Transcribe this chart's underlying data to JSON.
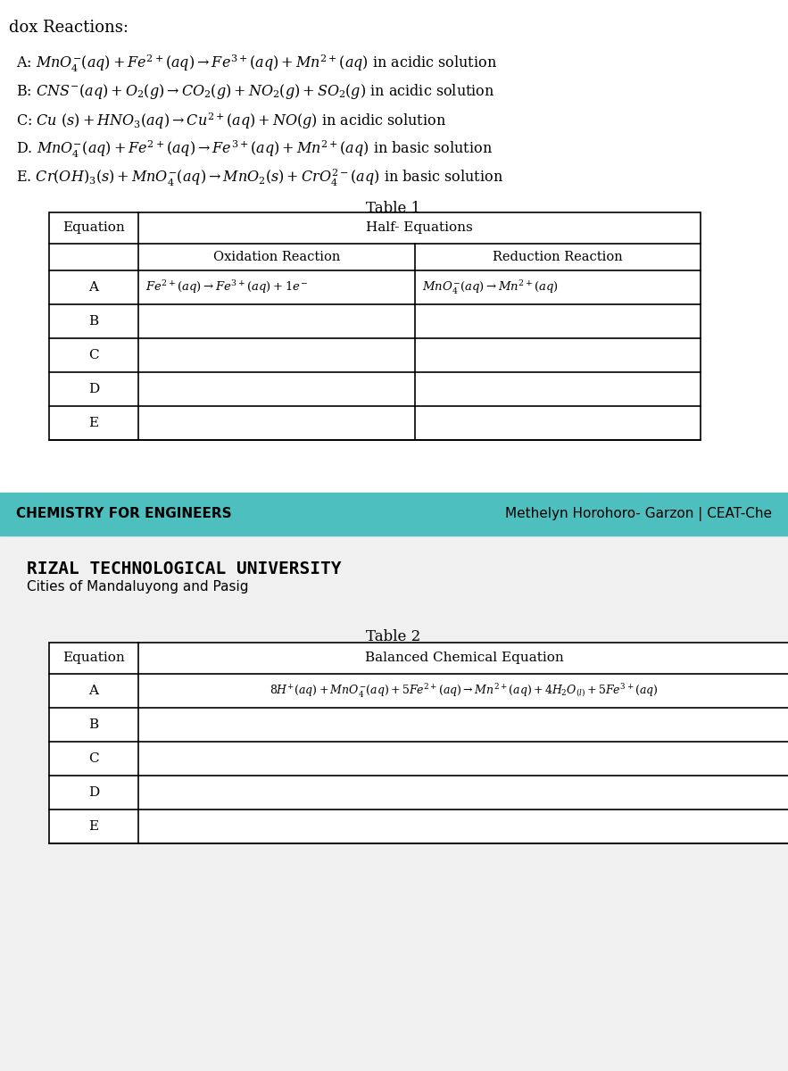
{
  "title_reactions": "dox Reactions:",
  "reactions": [
    "A: $MnO_4^{-}(aq) + Fe^{2+}(aq) \\rightarrow Fe^{3+}(aq) + Mn^{2+}(aq)$ in acidic solution",
    "B: $CNS^{-}(aq) + O_2(g) \\rightarrow CO_2(g) + NO_2(g) + SO_2(g)$ in acidic solution",
    "C: $Cu\\ (s) + HNO_3(aq) \\rightarrow Cu^{2+}(aq) + NO(g)$ in acidic solution",
    "D. $MnO_4^{-}(aq) + Fe^{2+}(aq) \\rightarrow Fe^{3+}(aq) + Mn^{2+}(aq)$ in basic solution",
    "E. $Cr(OH)_3(s) + MnO_4^{-}(aq) \\rightarrow MnO_2(s) + CrO_4^{2-}(aq)$ in basic solution"
  ],
  "table1_title": "Table 1",
  "table1_col_header": "Equation",
  "table1_span_header": "Half- Equations",
  "table1_sub_headers": [
    "Oxidation Reaction",
    "Reduction Reaction"
  ],
  "table1_rows": [
    "A",
    "B",
    "C",
    "D",
    "E"
  ],
  "table1_row_A_ox": "$Fe^{2+}(aq) \\rightarrow Fe^{3+}(aq) + 1e^{-}$",
  "table1_row_A_red": "$MnO_4^{-}(aq) \\rightarrow Mn^{2+}(aq)$",
  "footer_left": "CHEMISTRY FOR ENGINEERS",
  "footer_right": "Methelyn Horohoro- Garzon | CEAT-Che",
  "footer_bg": "#4DBFBF",
  "university_title": "RIZAL TECHNOLOGICAL UNIVERSITY",
  "university_subtitle": "Cities of Mandaluyong and Pasig",
  "table2_title": "Table 2",
  "table2_col_header": "Equation",
  "table2_span_header": "Balanced Chemical Equation",
  "table2_rows": [
    "A",
    "B",
    "C",
    "D",
    "E"
  ],
  "table2_row_A": "$8H^{+}(aq) + MnO_4^{-}(aq) + 5Fe^{2+}(aq) \\rightarrow Mn^{2+}(aq) + 4H_2O_{(l)} + 5Fe^{3+}(aq)$",
  "bg_color": "#FFFFFF",
  "section2_bg": "#F0F0F0"
}
